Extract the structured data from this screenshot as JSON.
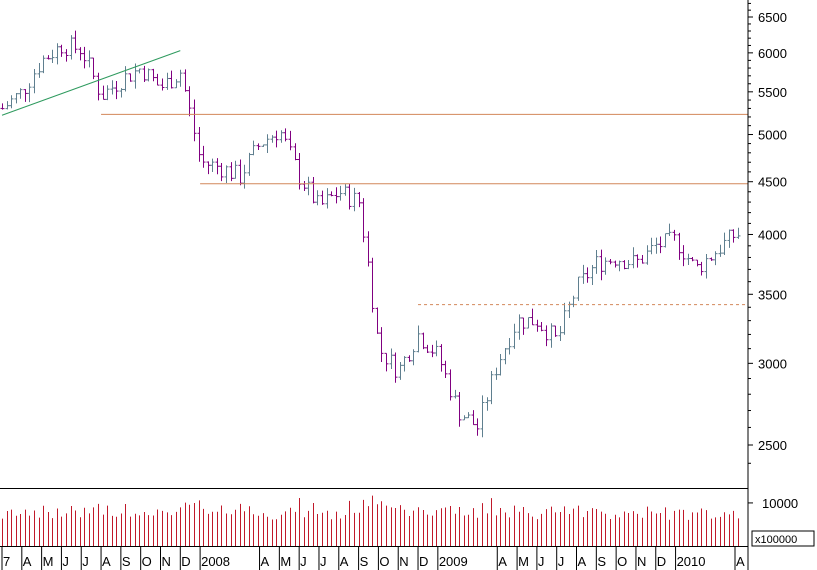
{
  "chart_data": {
    "type": "ohlc_bar",
    "price_axis": {
      "scale": "log",
      "ticks": [
        6500,
        6000,
        5500,
        5000,
        4500,
        4000,
        3500,
        3000,
        2500
      ],
      "range": [
        2280,
        6950
      ]
    },
    "volume_axis": {
      "ticks": [
        10000
      ],
      "unit_label": "x100000",
      "range": [
        0,
        13000
      ]
    },
    "month_labels": [
      "7",
      "A",
      "M",
      "J",
      "J",
      "A",
      "S",
      "O",
      "N",
      "D",
      "2008",
      "A",
      "M",
      "J",
      "J",
      "A",
      "S",
      "O",
      "N",
      "D",
      "2009",
      "A",
      "M",
      "J",
      "J",
      "A",
      "S",
      "O",
      "N",
      "D",
      "2010",
      "A"
    ],
    "month_label_x": [
      "2007-03",
      "2007-04",
      "2007-05",
      "2007-06",
      "2007-07",
      "2007-08",
      "2007-09",
      "2007-10",
      "2007-11",
      "2007-12",
      "2008-01",
      "2008-04",
      "2008-05",
      "2008-06",
      "2008-07",
      "2008-08",
      "2008-09",
      "2008-10",
      "2008-11",
      "2008-12",
      "2009-01",
      "2009-04",
      "2009-05",
      "2009-06",
      "2009-07",
      "2009-08",
      "2009-09",
      "2009-10",
      "2009-11",
      "2009-12",
      "2010-01",
      "2010-04"
    ],
    "weekly_close_anchors": [
      [
        "2007-03",
        5300
      ],
      [
        "2007-04",
        5500
      ],
      [
        "2007-05",
        5900
      ],
      [
        "2007-06",
        6100
      ],
      [
        "2007-07",
        6050
      ],
      [
        "2007-08",
        5450
      ],
      [
        "2007-09",
        5650
      ],
      [
        "2007-10",
        5800
      ],
      [
        "2007-11",
        5550
      ],
      [
        "2007-12",
        5750
      ],
      [
        "2008-01",
        4700
      ],
      [
        "2008-02",
        4650
      ],
      [
        "2008-03",
        4550
      ],
      [
        "2008-04",
        4900
      ],
      [
        "2008-05",
        5050
      ],
      [
        "2008-06",
        4550
      ],
      [
        "2008-07",
        4250
      ],
      [
        "2008-08",
        4400
      ],
      [
        "2008-09",
        4300
      ],
      [
        "2008-10",
        3100
      ],
      [
        "2008-11",
        2950
      ],
      [
        "2008-12",
        3200
      ],
      [
        "2009-01",
        3050
      ],
      [
        "2009-02",
        2700
      ],
      [
        "2009-03",
        2600
      ],
      [
        "2009-04",
        3000
      ],
      [
        "2009-05",
        3300
      ],
      [
        "2009-06",
        3300
      ],
      [
        "2009-07",
        3150
      ],
      [
        "2009-08",
        3550
      ],
      [
        "2009-09",
        3750
      ],
      [
        "2009-10",
        3800
      ],
      [
        "2009-11",
        3750
      ],
      [
        "2009-12",
        3900
      ],
      [
        "2010-01",
        3950
      ],
      [
        "2010-02",
        3700
      ],
      [
        "2010-03",
        3850
      ],
      [
        "2010-04",
        4000
      ]
    ],
    "lines": [
      {
        "style": "solid",
        "color": "#2e9a5e",
        "from": [
          "2007-03",
          5220
        ],
        "to": [
          "2007-12",
          6030
        ]
      },
      {
        "style": "solid",
        "color": "#d2875a",
        "from": [
          "2007-08",
          5230
        ],
        "to": [
          "2010-05",
          5230
        ]
      },
      {
        "style": "solid",
        "color": "#d2875a",
        "from": [
          "2008-01",
          4480
        ],
        "to": [
          "2010-05",
          4480
        ]
      },
      {
        "style": "dashed",
        "color": "#d2875a",
        "from": [
          "2008-12",
          3420
        ],
        "to": [
          "2010-05",
          3420
        ]
      }
    ],
    "colors": {
      "down_bar": "#800080",
      "up_bar": "#5f7f8f",
      "volume": "#c0192a",
      "axis": "#000000"
    },
    "grid": false
  }
}
